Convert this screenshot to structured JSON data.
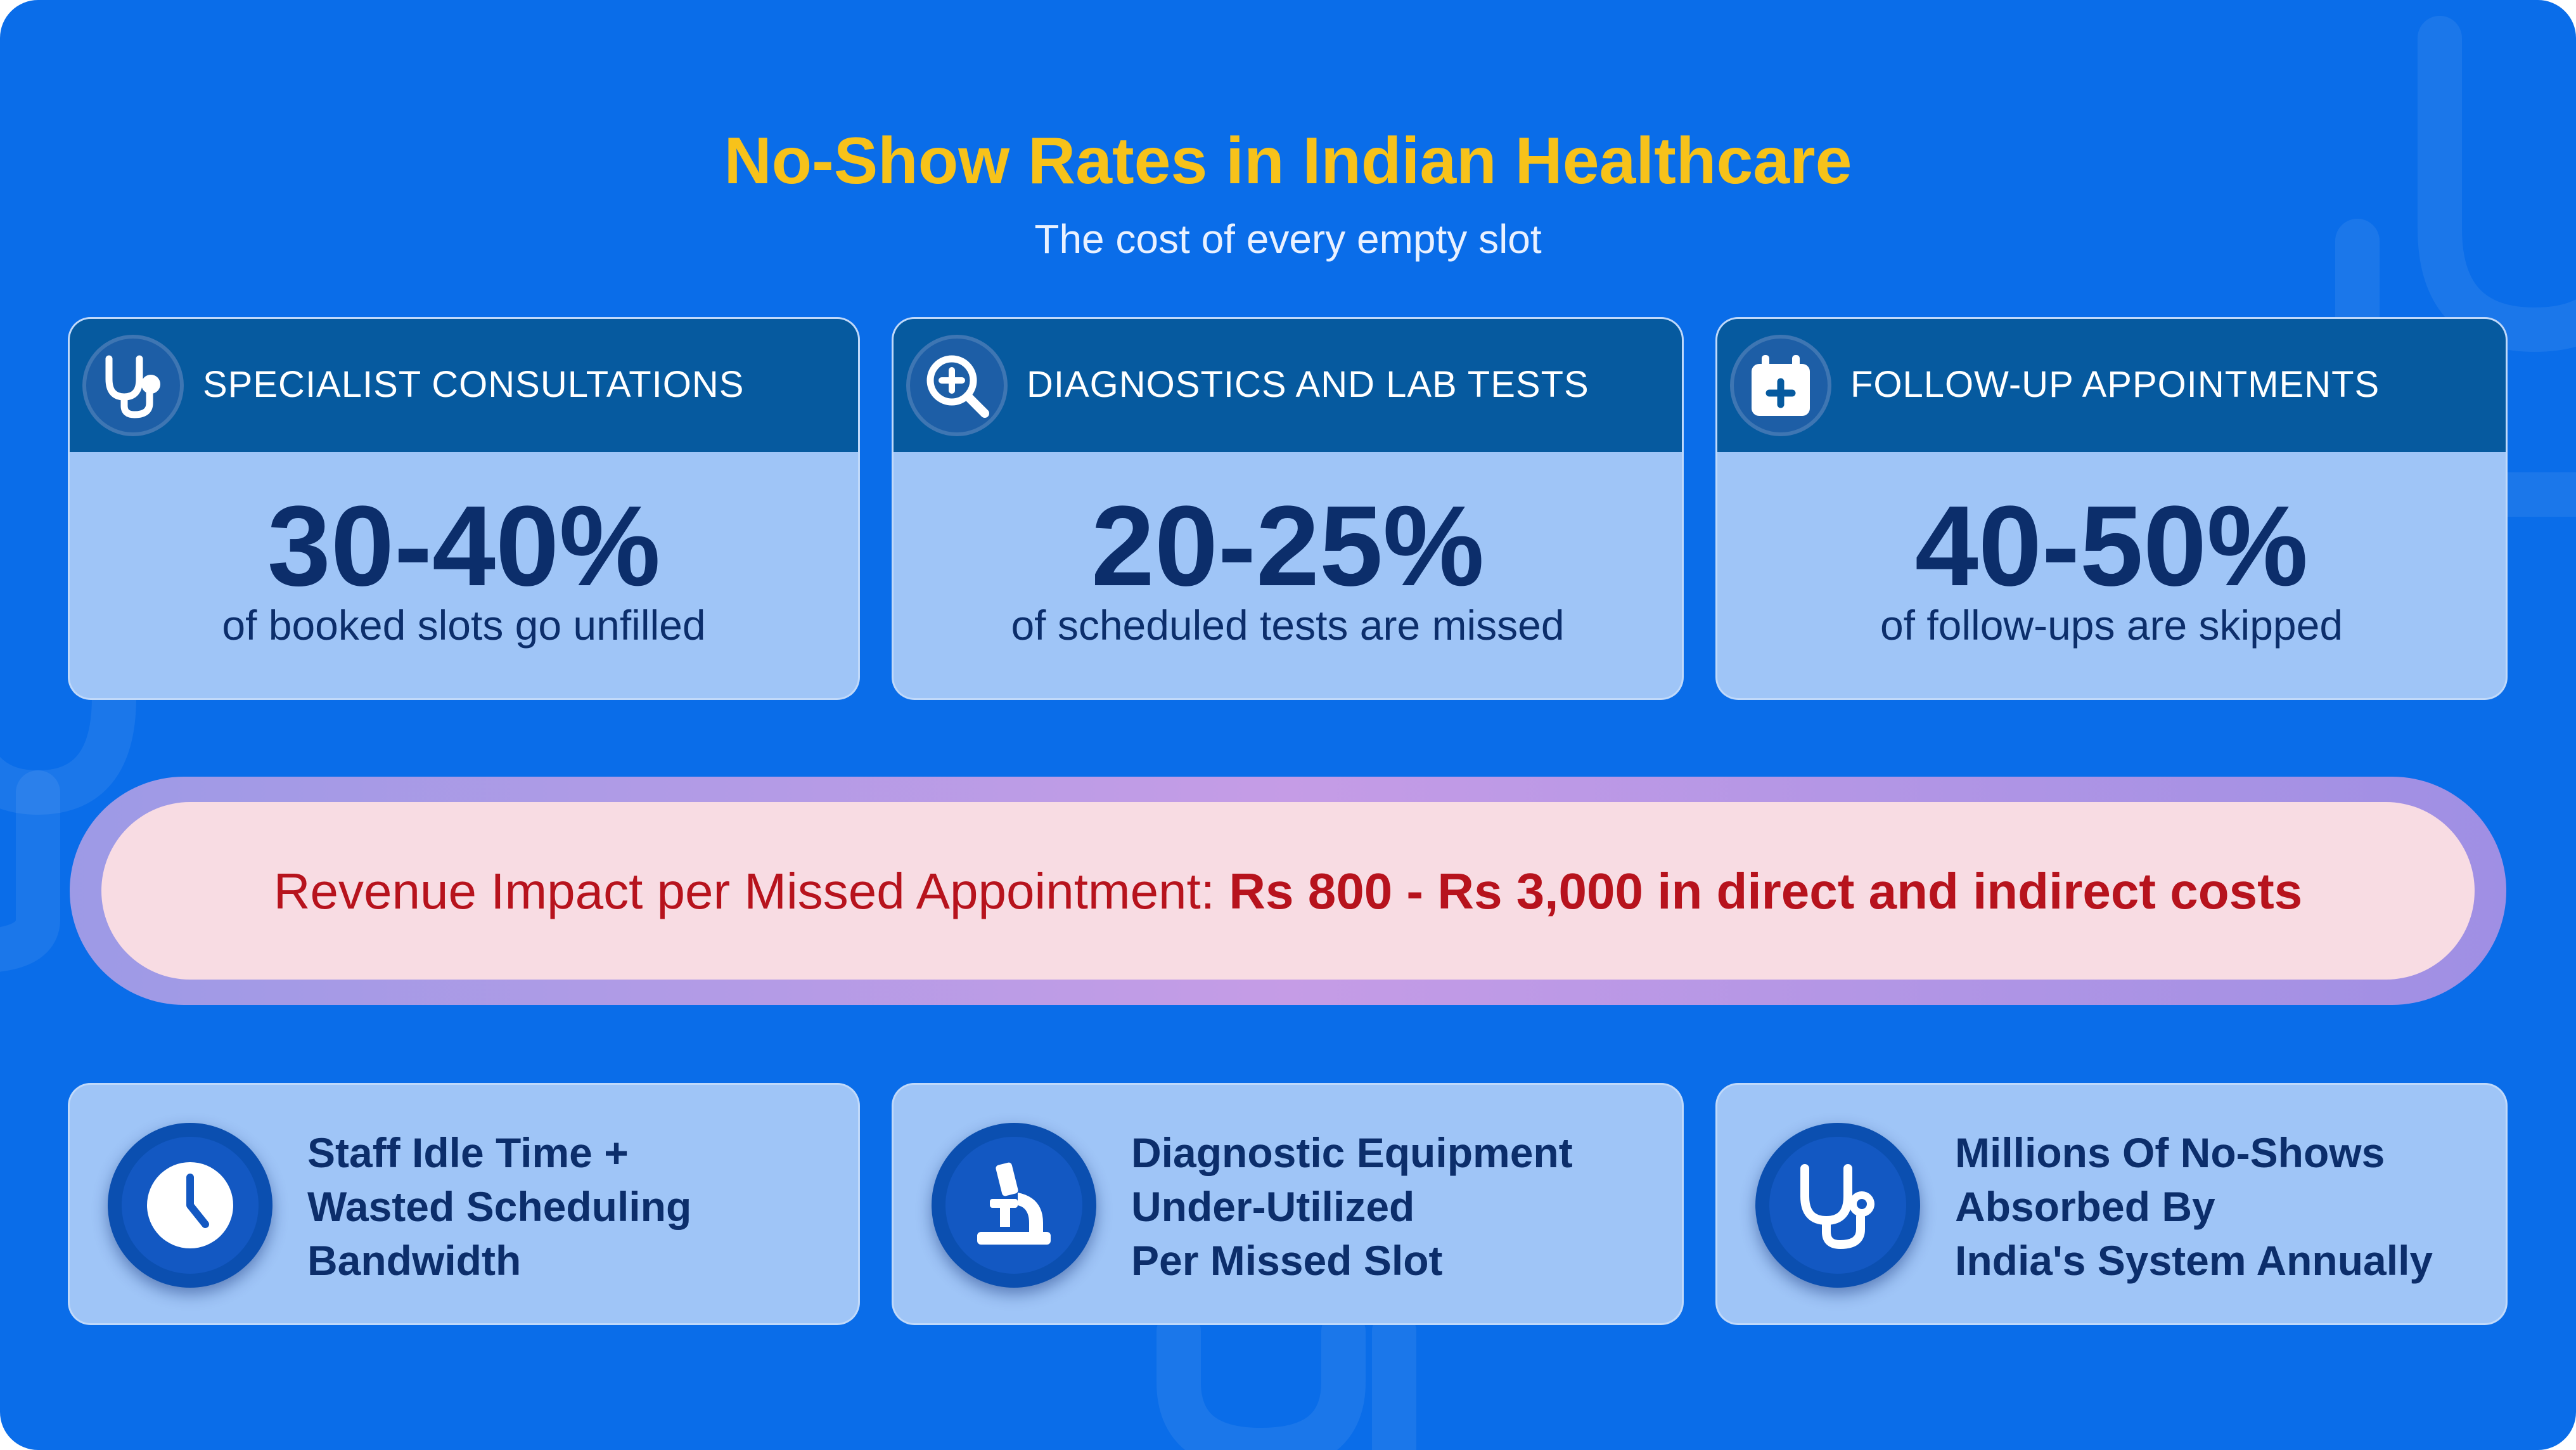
{
  "header": {
    "title": "No-Show Rates in Indian Healthcare",
    "subtitle": "The cost of every empty slot"
  },
  "stats": [
    {
      "label": "SPECIALIST CONSULTATIONS",
      "value": "30-40%",
      "description": "of booked slots go unfilled",
      "icon": "stethoscope-icon"
    },
    {
      "label": "DIAGNOSTICS AND LAB TESTS",
      "value": "20-25%",
      "description": "of scheduled tests are missed",
      "icon": "magnifier-plus-icon"
    },
    {
      "label": "FOLLOW-UP APPOINTMENTS",
      "value": "40-50%",
      "description": "of follow-ups are skipped",
      "icon": "calendar-plus-icon"
    }
  ],
  "banner": {
    "prefix": "Revenue Impact per Missed Appointment: ",
    "highlight": "Rs 800 - Rs 3,000 in direct and indirect costs"
  },
  "impacts": [
    {
      "lines": [
        "Staff Idle Time +",
        "Wasted Scheduling",
        "Bandwidth"
      ],
      "icon": "clock-icon"
    },
    {
      "lines": [
        "Diagnostic Equipment",
        "Under-Utilized",
        "Per Missed Slot"
      ],
      "icon": "microscope-icon"
    },
    {
      "lines": [
        "Millions Of No-Shows",
        "Absorbed By",
        "India's System Annually"
      ],
      "icon": "stethoscope-icon"
    }
  ],
  "colors": {
    "background": "#0a6de9",
    "title": "#f7c21a",
    "card": "#9fc5f7",
    "card_header": "#065a9f",
    "dark_text": "#0c2e6b",
    "banner_text": "#b7131d",
    "banner_fill": "#f8dce3"
  }
}
